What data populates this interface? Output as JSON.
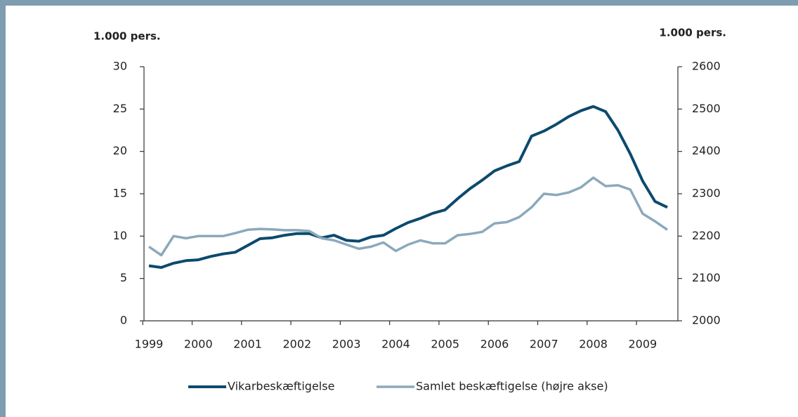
{
  "chart_data": {
    "type": "line",
    "y_label": "1.000 pers.",
    "y2_label": "1.000 pers.",
    "categories": [
      "1999",
      null,
      null,
      null,
      "2000",
      null,
      null,
      null,
      "2001",
      null,
      null,
      null,
      "2002",
      null,
      null,
      null,
      "2003",
      null,
      null,
      null,
      "2004",
      null,
      null,
      null,
      "2005",
      null,
      null,
      null,
      "2006",
      null,
      null,
      null,
      "2007",
      null,
      null,
      null,
      "2008",
      null,
      null,
      null,
      "2009",
      null,
      null
    ],
    "series": [
      {
        "name": "Vikarbeskæftigelse",
        "color": "#0c4a6e",
        "values": [
          6.5,
          6.3,
          6.8,
          7.1,
          7.2,
          7.6,
          7.9,
          8.1,
          8.9,
          9.7,
          9.8,
          10.1,
          10.3,
          10.3,
          9.8,
          10.1,
          9.5,
          9.4,
          9.9,
          10.1,
          10.9,
          11.6,
          12.1,
          12.7,
          13.1,
          14.4,
          15.6,
          16.6,
          17.7,
          18.3,
          18.8,
          21.8,
          22.4,
          23.2,
          24.1,
          24.8,
          25.3,
          24.7,
          22.5,
          19.7,
          16.5,
          14.1,
          13.4
        ]
      },
      {
        "name": "Samlet beskæftigelse (højre akse)",
        "color": "#8ba9bb",
        "axis": "y2",
        "values": [
          2175,
          2155,
          2200,
          2195,
          2200,
          2200,
          2200,
          2207,
          2215,
          2217,
          2216,
          2214,
          2214,
          2212,
          2195,
          2190,
          2180,
          2170,
          2175,
          2185,
          2165,
          2180,
          2190,
          2183,
          2183,
          2202,
          2205,
          2210,
          2230,
          2233,
          2245,
          2268,
          2300,
          2297,
          2303,
          2315,
          2338,
          2318,
          2320,
          2310,
          2253,
          2235,
          2215
        ]
      }
    ],
    "ylim": [
      0,
      30
    ],
    "yticks": [
      0,
      5,
      10,
      15,
      20,
      25,
      30
    ],
    "y2lim": [
      2000,
      2600
    ],
    "y2ticks": [
      2000,
      2100,
      2200,
      2300,
      2400,
      2500,
      2600
    ],
    "grid": false,
    "legend": "bottom"
  }
}
